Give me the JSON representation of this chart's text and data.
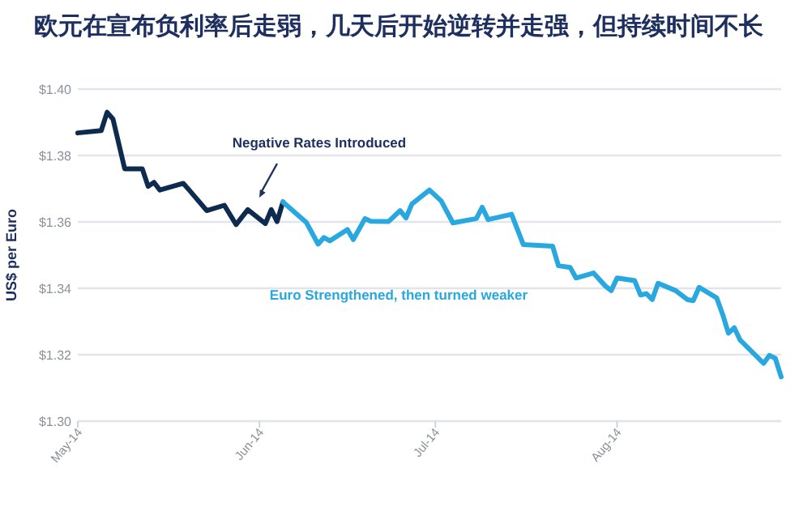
{
  "chart_data": {
    "type": "line",
    "title": "欧元在宣布负利率后走弱，几天后开始逆转并走强，但持续时间不长",
    "ylabel": "US$ per Euro",
    "xlim": [
      "2014-05-01",
      "2014-08-29"
    ],
    "xticks": [
      {
        "value": "2014-05-01",
        "label": "May-14"
      },
      {
        "value": "2014-06-01",
        "label": "Jun-14"
      },
      {
        "value": "2014-07-01",
        "label": "Jul-14"
      },
      {
        "value": "2014-08-01",
        "label": "Aug-14"
      }
    ],
    "ylim": [
      1.3,
      1.4
    ],
    "yticks": [
      {
        "value": 1.3,
        "label": "$1.30"
      },
      {
        "value": 1.32,
        "label": "$1.32"
      },
      {
        "value": 1.34,
        "label": "$1.34"
      },
      {
        "value": 1.36,
        "label": "$1.36"
      },
      {
        "value": 1.38,
        "label": "$1.38"
      },
      {
        "value": 1.4,
        "label": "$1.40"
      }
    ],
    "grid": "y",
    "marker": "none",
    "line_style": "solid",
    "annotations": [
      "Negative Rates Introduced",
      "Euro Strengthened, then turned weaker"
    ],
    "series": [
      {
        "color": "#0d2a4f",
        "x": [
          "2014-05-01",
          "2014-05-05",
          "2014-05-06",
          "2014-05-07",
          "2014-05-09",
          "2014-05-12",
          "2014-05-13",
          "2014-05-14",
          "2014-05-15",
          "2014-05-19",
          "2014-05-20",
          "2014-05-23",
          "2014-05-26",
          "2014-05-28",
          "2014-05-30",
          "2014-06-02",
          "2014-06-03",
          "2014-06-04",
          "2014-06-05"
        ],
        "values": [
          1.3868,
          1.3875,
          1.393,
          1.391,
          1.376,
          1.376,
          1.3707,
          1.3719,
          1.3696,
          1.3716,
          1.3696,
          1.3634,
          1.365,
          1.3592,
          1.3637,
          1.3595,
          1.3637,
          1.3601,
          1.366
        ]
      },
      {
        "color": "#29a8e0",
        "x": [
          "2014-06-05",
          "2014-06-09",
          "2014-06-11",
          "2014-06-12",
          "2014-06-13",
          "2014-06-16",
          "2014-06-17",
          "2014-06-19",
          "2014-06-20",
          "2014-06-23",
          "2014-06-25",
          "2014-06-26",
          "2014-06-27",
          "2014-06-30",
          "2014-07-02",
          "2014-07-04",
          "2014-07-08",
          "2014-07-09",
          "2014-07-10",
          "2014-07-14",
          "2014-07-16",
          "2014-07-21",
          "2014-07-22",
          "2014-07-24",
          "2014-07-25",
          "2014-07-28",
          "2014-07-30",
          "2014-07-31",
          "2014-08-01",
          "2014-08-04",
          "2014-08-05",
          "2014-08-06",
          "2014-08-07",
          "2014-08-08",
          "2014-08-11",
          "2014-08-13",
          "2014-08-14",
          "2014-08-15",
          "2014-08-18",
          "2014-08-19",
          "2014-08-20",
          "2014-08-21",
          "2014-08-22",
          "2014-08-26",
          "2014-08-27",
          "2014-08-28",
          "2014-08-29"
        ],
        "values": [
          1.366,
          1.3598,
          1.3533,
          1.3553,
          1.3543,
          1.3577,
          1.3547,
          1.361,
          1.3602,
          1.3601,
          1.3634,
          1.3612,
          1.3654,
          1.3696,
          1.3663,
          1.3597,
          1.361,
          1.3644,
          1.3607,
          1.3623,
          1.3532,
          1.3527,
          1.3468,
          1.3463,
          1.3431,
          1.3446,
          1.3407,
          1.3393,
          1.3431,
          1.3423,
          1.338,
          1.3384,
          1.3366,
          1.3415,
          1.3393,
          1.3366,
          1.3363,
          1.3403,
          1.3371,
          1.3322,
          1.3265,
          1.3281,
          1.3244,
          1.3174,
          1.3198,
          1.3189,
          1.3133
        ]
      }
    ]
  }
}
